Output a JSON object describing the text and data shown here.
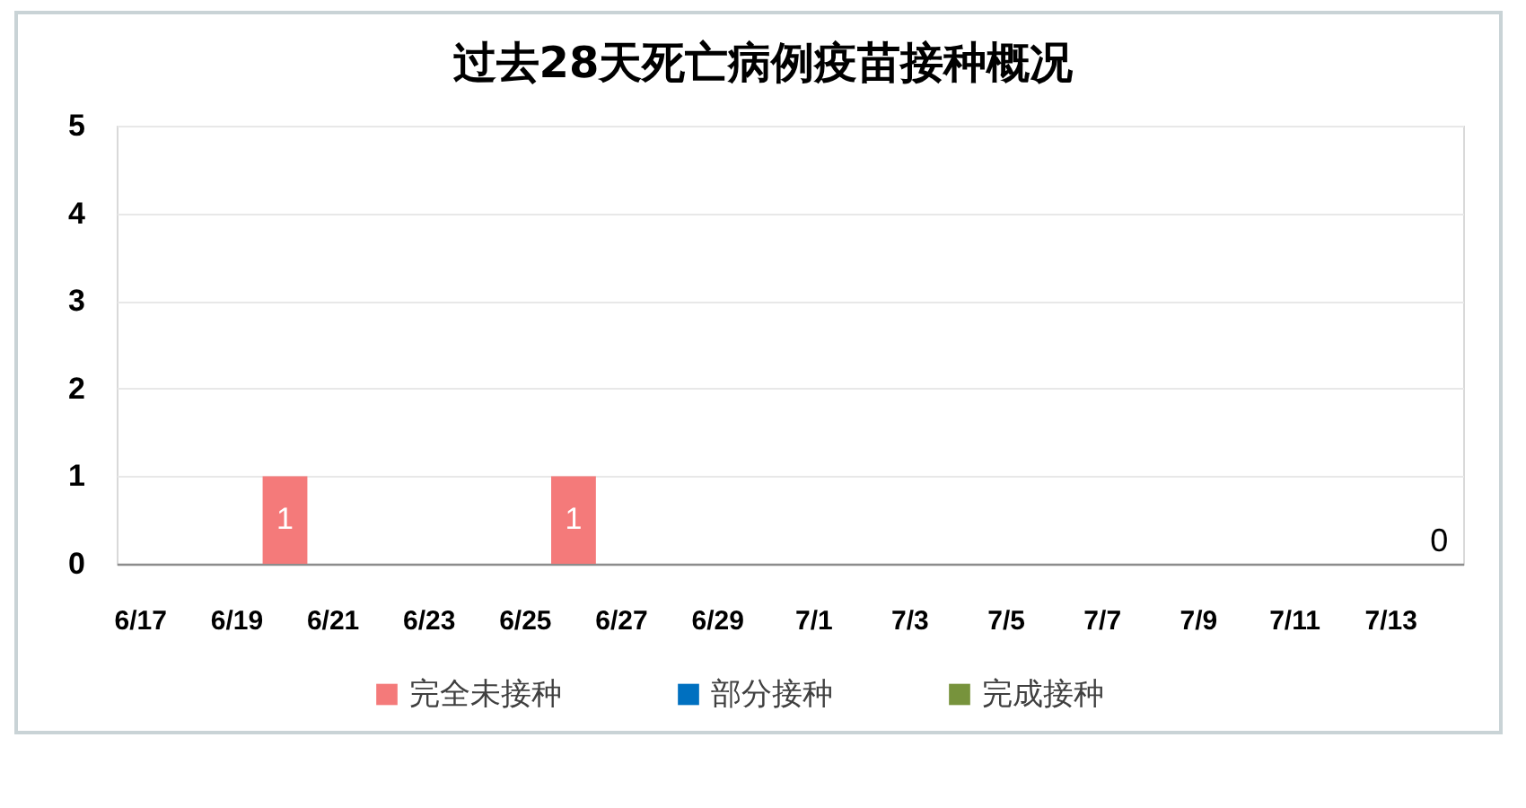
{
  "chart_data": {
    "type": "bar",
    "title": "过去28天死亡病例疫苗接种概况",
    "categories": [
      "6/17",
      null,
      "6/19",
      null,
      "6/21",
      null,
      "6/23",
      null,
      "6/25",
      null,
      "6/27",
      null,
      "6/29",
      null,
      "7/1",
      null,
      "7/3",
      null,
      "7/5",
      null,
      "7/7",
      null,
      "7/9",
      null,
      "7/11",
      null,
      "7/13",
      null
    ],
    "stacked": true,
    "series": [
      {
        "name": "完全未接种",
        "color": "#f47a7a",
        "values": [
          0,
          0,
          0,
          1,
          0,
          0,
          0,
          0,
          0,
          1,
          0,
          0,
          0,
          0,
          0,
          0,
          0,
          0,
          0,
          0,
          0,
          0,
          0,
          0,
          0,
          0,
          0,
          0
        ],
        "value_labels": [
          null,
          null,
          null,
          "1",
          null,
          null,
          null,
          null,
          null,
          "1",
          null,
          null,
          null,
          null,
          null,
          null,
          null,
          null,
          null,
          null,
          null,
          null,
          null,
          null,
          null,
          null,
          null,
          "0"
        ]
      },
      {
        "name": "部分接种",
        "color": "#0070c0",
        "values": [
          0,
          0,
          0,
          0,
          0,
          0,
          0,
          0,
          0,
          0,
          0,
          0,
          0,
          0,
          0,
          0,
          0,
          0,
          0,
          0,
          0,
          0,
          0,
          0,
          0,
          0,
          0,
          0
        ]
      },
      {
        "name": "完成接种",
        "color": "#77933c",
        "values": [
          0,
          0,
          0,
          0,
          0,
          0,
          0,
          0,
          0,
          0,
          0,
          0,
          0,
          0,
          0,
          0,
          0,
          0,
          0,
          0,
          0,
          0,
          0,
          0,
          0,
          0,
          0,
          0
        ]
      }
    ],
    "ylim": [
      0,
      5
    ],
    "yticks": [
      0,
      1,
      2,
      3,
      4,
      5
    ],
    "grid": "y",
    "legend": "bottom"
  }
}
